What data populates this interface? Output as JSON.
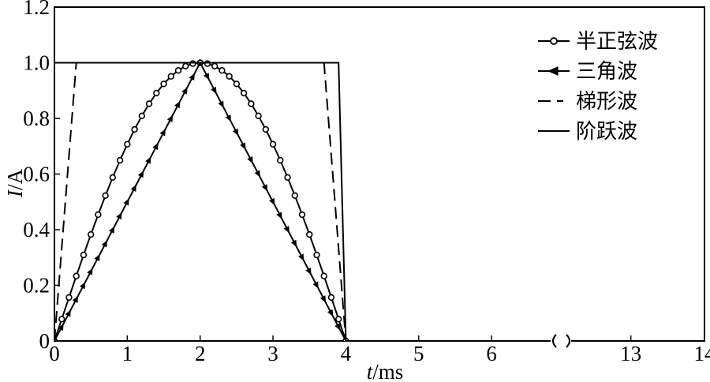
{
  "chart_data": {
    "type": "line",
    "xlabel": {
      "italic": "t",
      "rest": "/ms"
    },
    "ylabel": {
      "italic": "I",
      "rest": "/A"
    },
    "xlim_left": [
      0,
      6.8
    ],
    "xlim_right": [
      12.2,
      14
    ],
    "ylim": [
      0,
      1.2
    ],
    "axis_break": true,
    "grid": false,
    "legend_position": "top-right",
    "xticks": [
      {
        "value": 0,
        "label": "0"
      },
      {
        "value": 1,
        "label": "1"
      },
      {
        "value": 2,
        "label": "2"
      },
      {
        "value": 3,
        "label": "3"
      },
      {
        "value": 4,
        "label": "4"
      },
      {
        "value": 5,
        "label": "5"
      },
      {
        "value": 6,
        "label": "6"
      },
      {
        "value": 13,
        "label": "13"
      },
      {
        "value": 14,
        "label": "14"
      }
    ],
    "yticks": [
      {
        "value": 0,
        "label": "0"
      },
      {
        "value": 0.2,
        "label": "0.2"
      },
      {
        "value": 0.4,
        "label": "0.4"
      },
      {
        "value": 0.6,
        "label": "0.6"
      },
      {
        "value": 0.8,
        "label": "0.8"
      },
      {
        "value": 1.0,
        "label": "1.0"
      },
      {
        "value": 1.2,
        "label": "1.2"
      }
    ],
    "series": [
      {
        "name": "半正弦波",
        "style": "circle-marker",
        "points": [
          [
            0,
            0
          ],
          [
            0.1,
            0.0785
          ],
          [
            0.2,
            0.1564
          ],
          [
            0.3,
            0.2334
          ],
          [
            0.4,
            0.309
          ],
          [
            0.5,
            0.3827
          ],
          [
            0.6,
            0.454
          ],
          [
            0.7,
            0.5225
          ],
          [
            0.8,
            0.5878
          ],
          [
            0.9,
            0.6494
          ],
          [
            1.0,
            0.7071
          ],
          [
            1.1,
            0.7604
          ],
          [
            1.2,
            0.809
          ],
          [
            1.3,
            0.8526
          ],
          [
            1.4,
            0.891
          ],
          [
            1.5,
            0.9239
          ],
          [
            1.6,
            0.9511
          ],
          [
            1.7,
            0.9724
          ],
          [
            1.8,
            0.9877
          ],
          [
            1.9,
            0.9969
          ],
          [
            2.0,
            1.0
          ],
          [
            2.1,
            0.9969
          ],
          [
            2.2,
            0.9877
          ],
          [
            2.3,
            0.9724
          ],
          [
            2.4,
            0.9511
          ],
          [
            2.5,
            0.9239
          ],
          [
            2.6,
            0.891
          ],
          [
            2.7,
            0.8526
          ],
          [
            2.8,
            0.809
          ],
          [
            2.9,
            0.7604
          ],
          [
            3.0,
            0.7071
          ],
          [
            3.1,
            0.6494
          ],
          [
            3.2,
            0.5878
          ],
          [
            3.3,
            0.5225
          ],
          [
            3.4,
            0.454
          ],
          [
            3.5,
            0.3827
          ],
          [
            3.6,
            0.309
          ],
          [
            3.7,
            0.2334
          ],
          [
            3.8,
            0.1564
          ],
          [
            3.9,
            0.0785
          ],
          [
            4.0,
            0
          ],
          [
            14,
            0
          ]
        ]
      },
      {
        "name": "三角波",
        "style": "triangle-marker",
        "points": [
          [
            0,
            0
          ],
          [
            2,
            1
          ],
          [
            4,
            0
          ],
          [
            14,
            0
          ]
        ],
        "marker_step": 0.1
      },
      {
        "name": "梯形波",
        "style": "dashed",
        "points": [
          [
            0,
            0
          ],
          [
            0.3,
            1
          ],
          [
            3.7,
            1
          ],
          [
            4,
            0
          ],
          [
            14,
            0
          ]
        ]
      },
      {
        "name": "阶跃波",
        "style": "solid",
        "points": [
          [
            0,
            1
          ],
          [
            3.9,
            1
          ],
          [
            4,
            0
          ],
          [
            14,
            0
          ]
        ]
      }
    ]
  }
}
